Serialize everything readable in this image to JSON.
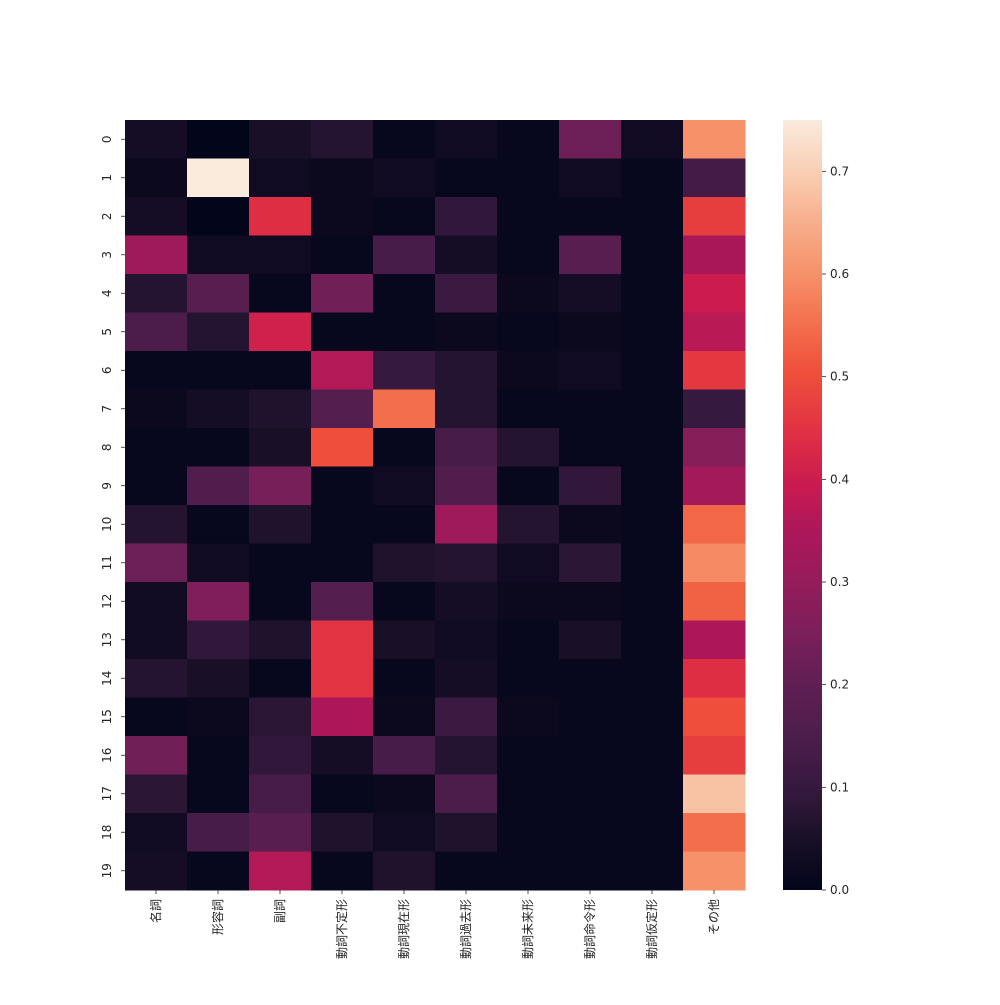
{
  "chart_data": {
    "type": "heatmap",
    "title": "",
    "xlabel": "",
    "ylabel": "",
    "colormap": "rocket",
    "vmin": 0.0,
    "vmax": 0.75,
    "x_categories": [
      "名詞",
      "形容詞",
      "副詞",
      "動詞不定形",
      "動詞現在形",
      "動詞過去形",
      "動詞未来形",
      "動詞命令形",
      "動詞仮定形",
      "その他"
    ],
    "y_categories": [
      "0",
      "1",
      "2",
      "3",
      "4",
      "5",
      "6",
      "7",
      "8",
      "9",
      "10",
      "11",
      "12",
      "13",
      "14",
      "15",
      "16",
      "17",
      "18",
      "19"
    ],
    "colorbar_ticks": [
      "0.0",
      "0.1",
      "0.2",
      "0.3",
      "0.4",
      "0.5",
      "0.6",
      "0.7"
    ],
    "values": [
      [
        0.04,
        0.0,
        0.05,
        0.07,
        0.01,
        0.03,
        0.01,
        0.22,
        0.03,
        0.6
      ],
      [
        0.02,
        0.75,
        0.03,
        0.02,
        0.03,
        0.01,
        0.01,
        0.03,
        0.01,
        0.13
      ],
      [
        0.04,
        0.0,
        0.44,
        0.02,
        0.01,
        0.09,
        0.01,
        0.01,
        0.01,
        0.47
      ],
      [
        0.32,
        0.03,
        0.03,
        0.01,
        0.14,
        0.04,
        0.01,
        0.18,
        0.01,
        0.34
      ],
      [
        0.07,
        0.18,
        0.01,
        0.23,
        0.01,
        0.11,
        0.02,
        0.04,
        0.01,
        0.4
      ],
      [
        0.15,
        0.07,
        0.41,
        0.01,
        0.01,
        0.02,
        0.01,
        0.02,
        0.01,
        0.37
      ],
      [
        0.01,
        0.01,
        0.01,
        0.36,
        0.1,
        0.07,
        0.02,
        0.03,
        0.01,
        0.46
      ],
      [
        0.02,
        0.04,
        0.06,
        0.17,
        0.55,
        0.07,
        0.01,
        0.01,
        0.01,
        0.1
      ],
      [
        0.01,
        0.01,
        0.05,
        0.5,
        0.01,
        0.14,
        0.07,
        0.01,
        0.01,
        0.27
      ],
      [
        0.01,
        0.16,
        0.24,
        0.01,
        0.03,
        0.16,
        0.01,
        0.09,
        0.01,
        0.33
      ],
      [
        0.07,
        0.01,
        0.06,
        0.01,
        0.01,
        0.32,
        0.07,
        0.02,
        0.01,
        0.54
      ],
      [
        0.22,
        0.03,
        0.01,
        0.01,
        0.06,
        0.07,
        0.03,
        0.08,
        0.01,
        0.59
      ],
      [
        0.03,
        0.26,
        0.01,
        0.17,
        0.01,
        0.04,
        0.02,
        0.02,
        0.01,
        0.53
      ],
      [
        0.03,
        0.09,
        0.06,
        0.45,
        0.05,
        0.03,
        0.01,
        0.05,
        0.01,
        0.35
      ],
      [
        0.07,
        0.05,
        0.01,
        0.45,
        0.01,
        0.04,
        0.01,
        0.01,
        0.01,
        0.44
      ],
      [
        0.01,
        0.02,
        0.08,
        0.35,
        0.02,
        0.11,
        0.02,
        0.01,
        0.01,
        0.5
      ],
      [
        0.23,
        0.01,
        0.09,
        0.04,
        0.14,
        0.07,
        0.01,
        0.01,
        0.01,
        0.47
      ],
      [
        0.08,
        0.01,
        0.14,
        0.01,
        0.02,
        0.15,
        0.01,
        0.01,
        0.01,
        0.68
      ],
      [
        0.03,
        0.14,
        0.18,
        0.06,
        0.03,
        0.06,
        0.01,
        0.01,
        0.01,
        0.55
      ],
      [
        0.04,
        0.01,
        0.36,
        0.01,
        0.06,
        0.01,
        0.01,
        0.01,
        0.01,
        0.6
      ]
    ]
  }
}
